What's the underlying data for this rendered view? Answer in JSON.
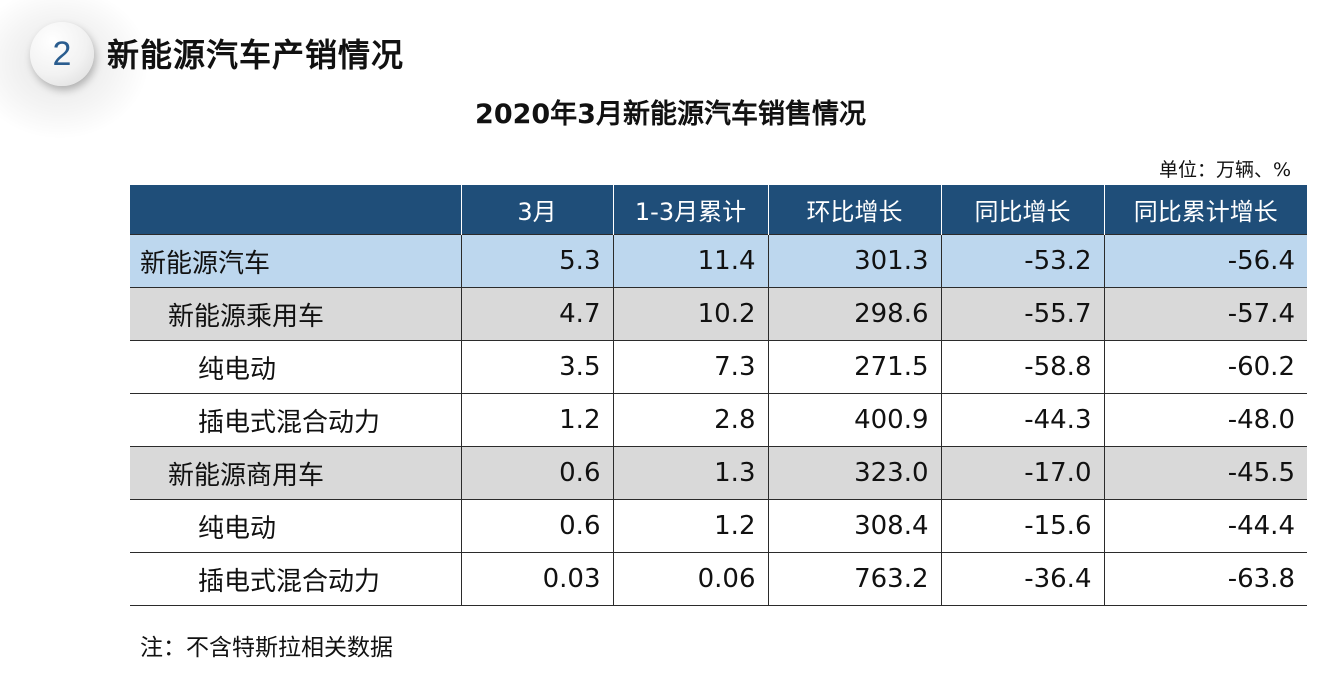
{
  "section": {
    "number": "2",
    "title": "新能源汽车产销情况"
  },
  "table_title": "2020年3月新能源汽车销售情况",
  "unit": "单位：万辆、%",
  "table": {
    "headers": [
      "",
      "3月",
      "1-3月累计",
      "环比增长",
      "同比增长",
      "同比累计增长"
    ],
    "rows": [
      {
        "level": 0,
        "cells": [
          "新能源汽车",
          "5.3",
          "11.4",
          "301.3",
          "-53.2",
          "-56.4"
        ]
      },
      {
        "level": 1,
        "cells": [
          "新能源乘用车",
          "4.7",
          "10.2",
          "298.6",
          "-55.7",
          "-57.4"
        ]
      },
      {
        "level": 2,
        "cells": [
          "纯电动",
          "3.5",
          "7.3",
          "271.5",
          "-58.8",
          "-60.2"
        ]
      },
      {
        "level": 2,
        "cells": [
          "插电式混合动力",
          "1.2",
          "2.8",
          "400.9",
          "-44.3",
          "-48.0"
        ]
      },
      {
        "level": 1,
        "cells": [
          "新能源商用车",
          "0.6",
          "1.3",
          "323.0",
          "-17.0",
          "-45.5"
        ]
      },
      {
        "level": 2,
        "cells": [
          "纯电动",
          "0.6",
          "1.2",
          "308.4",
          "-15.6",
          "-44.4"
        ]
      },
      {
        "level": 2,
        "cells": [
          "插电式混合动力",
          "0.03",
          "0.06",
          "763.2",
          "-36.4",
          "-63.8"
        ]
      }
    ]
  },
  "note": "注：不含特斯拉相关数据"
}
